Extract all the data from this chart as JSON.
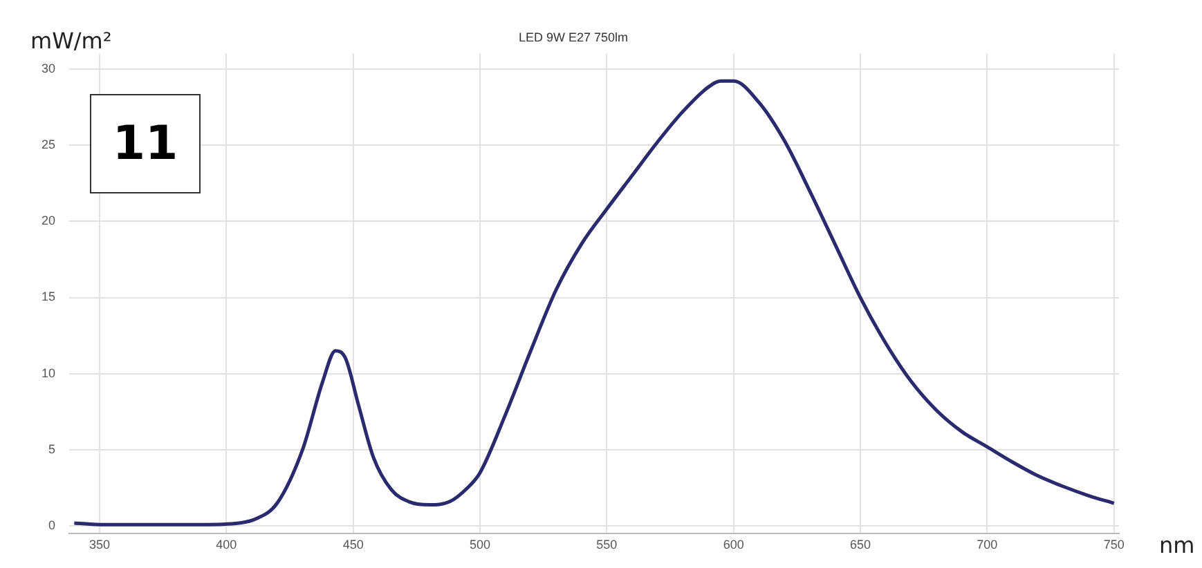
{
  "chart_data": {
    "type": "line",
    "title": "LED 9W E27 750lm",
    "xlabel": "nm",
    "ylabel": "mW/m²",
    "annotations": [
      "11"
    ],
    "x": [
      340,
      350,
      370,
      390,
      405,
      412,
      420,
      430,
      438,
      443,
      447,
      452,
      458,
      465,
      472,
      480,
      488,
      495,
      500,
      510,
      520,
      530,
      540,
      550,
      560,
      570,
      580,
      590,
      595,
      600,
      610,
      620,
      630,
      640,
      650,
      660,
      670,
      680,
      690,
      700,
      710,
      720,
      730,
      740,
      750
    ],
    "series": [
      {
        "color": "#2a2a6e",
        "values": [
          0.2,
          0.1,
          0.1,
          0.1,
          0.2,
          0.5,
          1.5,
          5,
          9.5,
          11.5,
          11,
          8,
          4.5,
          2.4,
          1.6,
          1.4,
          1.6,
          2.5,
          3.5,
          7.3,
          11.5,
          15.5,
          18.5,
          20.8,
          23,
          25.2,
          27.2,
          28.8,
          29.2,
          29.2,
          27.8,
          25.3,
          22,
          18.5,
          15,
          12,
          9.5,
          7.6,
          6.2,
          5.2,
          4.2,
          3.3,
          2.6,
          2,
          1.5
        ]
      }
    ],
    "xlim": [
      338,
      752
    ],
    "xticks": [
      350,
      400,
      450,
      500,
      550,
      600,
      650,
      700,
      750
    ],
    "ylim": [
      -0.5,
      31
    ],
    "yticks": [
      0,
      5,
      10,
      15,
      20,
      25,
      30
    ],
    "grid": true,
    "legend": false,
    "marker": "none",
    "line_style": "solid"
  }
}
